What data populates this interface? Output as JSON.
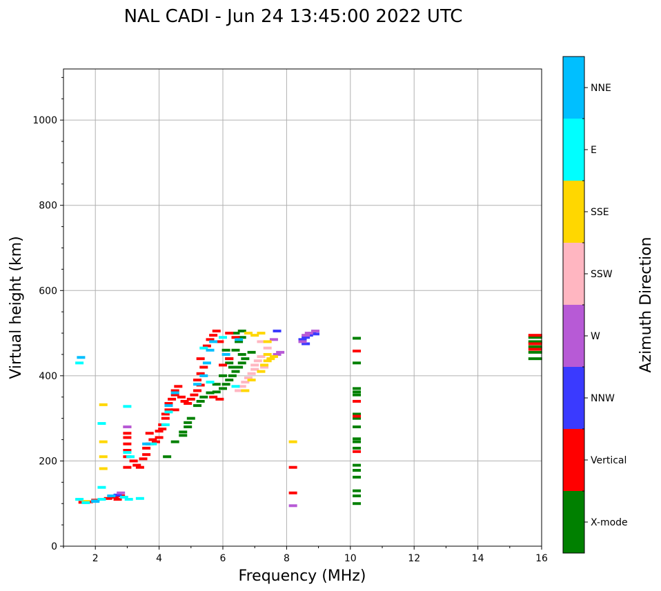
{
  "chart_data": {
    "type": "scatter",
    "title": "NAL CADI - Jun 24 13:45:00 2022 UTC",
    "xlabel": "Frequency (MHz)",
    "ylabel": "Virtual height (km)",
    "xlim": [
      1,
      16
    ],
    "ylim": [
      0,
      1120
    ],
    "xticks": [
      2,
      4,
      6,
      8,
      10,
      12,
      14,
      16
    ],
    "yticks": [
      0,
      200,
      400,
      600,
      800,
      1000
    ],
    "grid": true,
    "colorbar": {
      "label": "Azimuth Direction",
      "categories": [
        {
          "name": "X-mode",
          "color": "#008000"
        },
        {
          "name": "Vertical",
          "color": "#ff0000"
        },
        {
          "name": "NNW",
          "color": "#3a3aff"
        },
        {
          "name": "W",
          "color": "#b75ad6"
        },
        {
          "name": "SSW",
          "color": "#ffb6c1"
        },
        {
          "name": "SSE",
          "color": "#ffd700"
        },
        {
          "name": "E",
          "color": "#00ffff"
        },
        {
          "name": "NNE",
          "color": "#00bfff"
        }
      ]
    },
    "series": [
      {
        "name": "X-mode",
        "points": [
          [
            4.25,
            210
          ],
          [
            4.5,
            245
          ],
          [
            4.75,
            260
          ],
          [
            4.75,
            268
          ],
          [
            4.9,
            280
          ],
          [
            4.9,
            290
          ],
          [
            5.0,
            300
          ],
          [
            5.2,
            330
          ],
          [
            5.3,
            340
          ],
          [
            5.4,
            350
          ],
          [
            5.6,
            360
          ],
          [
            5.8,
            362
          ],
          [
            6.0,
            370
          ],
          [
            6.1,
            380
          ],
          [
            6.2,
            390
          ],
          [
            6.3,
            400
          ],
          [
            6.4,
            410
          ],
          [
            6.5,
            420
          ],
          [
            6.6,
            430
          ],
          [
            6.7,
            440
          ],
          [
            6.6,
            450
          ],
          [
            6.4,
            460
          ],
          [
            6.3,
            420
          ],
          [
            6.2,
            440
          ],
          [
            6.1,
            460
          ],
          [
            6.5,
            480
          ],
          [
            6.6,
            490
          ],
          [
            6.6,
            505
          ],
          [
            6.4,
            500
          ],
          [
            6.2,
            430
          ],
          [
            6.0,
            400
          ],
          [
            5.8,
            380
          ],
          [
            6.9,
            455
          ],
          [
            10.2,
            100
          ],
          [
            10.2,
            118
          ],
          [
            10.2,
            130
          ],
          [
            10.2,
            162
          ],
          [
            10.2,
            178
          ],
          [
            10.2,
            190
          ],
          [
            10.2,
            230
          ],
          [
            10.2,
            245
          ],
          [
            10.2,
            252
          ],
          [
            10.2,
            280
          ],
          [
            10.2,
            300
          ],
          [
            10.2,
            310
          ],
          [
            10.2,
            355
          ],
          [
            10.2,
            362
          ],
          [
            10.2,
            370
          ],
          [
            10.2,
            430
          ],
          [
            10.2,
            488
          ],
          [
            15.8,
            440
          ],
          [
            15.8,
            455
          ],
          [
            15.8,
            468
          ],
          [
            15.8,
            480
          ],
          [
            15.8,
            490
          ]
        ]
      },
      {
        "name": "Vertical",
        "points": [
          [
            1.6,
            103
          ],
          [
            1.8,
            104
          ],
          [
            2.0,
            108
          ],
          [
            2.4,
            112
          ],
          [
            2.6,
            115
          ],
          [
            2.8,
            118
          ],
          [
            2.7,
            110
          ],
          [
            3.0,
            185
          ],
          [
            3.0,
            210
          ],
          [
            3.0,
            225
          ],
          [
            3.0,
            240
          ],
          [
            3.0,
            255
          ],
          [
            3.0,
            265
          ],
          [
            3.0,
            280
          ],
          [
            3.2,
            200
          ],
          [
            3.3,
            190
          ],
          [
            3.4,
            185
          ],
          [
            3.5,
            205
          ],
          [
            3.6,
            215
          ],
          [
            3.6,
            230
          ],
          [
            3.7,
            240
          ],
          [
            3.7,
            265
          ],
          [
            3.8,
            250
          ],
          [
            3.9,
            245
          ],
          [
            4.0,
            255
          ],
          [
            4.0,
            270
          ],
          [
            4.1,
            275
          ],
          [
            4.1,
            285
          ],
          [
            4.2,
            300
          ],
          [
            4.2,
            310
          ],
          [
            4.3,
            320
          ],
          [
            4.3,
            335
          ],
          [
            4.4,
            345
          ],
          [
            4.5,
            355
          ],
          [
            4.5,
            365
          ],
          [
            4.6,
            375
          ],
          [
            4.7,
            350
          ],
          [
            4.8,
            340
          ],
          [
            4.9,
            335
          ],
          [
            5.0,
            345
          ],
          [
            5.1,
            355
          ],
          [
            5.2,
            365
          ],
          [
            5.3,
            378
          ],
          [
            5.2,
            390
          ],
          [
            5.3,
            405
          ],
          [
            5.4,
            420
          ],
          [
            5.3,
            440
          ],
          [
            5.5,
            470
          ],
          [
            5.6,
            485
          ],
          [
            5.7,
            495
          ],
          [
            5.8,
            505
          ],
          [
            5.9,
            480
          ],
          [
            6.0,
            425
          ],
          [
            6.2,
            440
          ],
          [
            6.2,
            500
          ],
          [
            6.4,
            490
          ],
          [
            4.5,
            320
          ],
          [
            5.7,
            350
          ],
          [
            5.9,
            345
          ],
          [
            8.2,
            125
          ],
          [
            8.2,
            185
          ],
          [
            10.2,
            222
          ],
          [
            10.2,
            305
          ],
          [
            10.2,
            340
          ],
          [
            10.2,
            458
          ],
          [
            15.8,
            462
          ],
          [
            15.8,
            475
          ],
          [
            15.8,
            495
          ]
        ]
      },
      {
        "name": "NNW",
        "points": [
          [
            8.5,
            485
          ],
          [
            8.6,
            490
          ],
          [
            8.7,
            495
          ],
          [
            8.8,
            500
          ],
          [
            8.9,
            498
          ],
          [
            8.6,
            475
          ],
          [
            7.7,
            505
          ],
          [
            2.7,
            120
          ]
        ]
      },
      {
        "name": "W",
        "points": [
          [
            8.2,
            95
          ],
          [
            8.5,
            480
          ],
          [
            8.6,
            495
          ],
          [
            8.7,
            500
          ],
          [
            8.9,
            505
          ],
          [
            7.7,
            450
          ],
          [
            7.8,
            455
          ],
          [
            7.6,
            485
          ],
          [
            2.8,
            125
          ],
          [
            3.0,
            280
          ]
        ]
      },
      {
        "name": "SSW",
        "points": [
          [
            6.5,
            365
          ],
          [
            6.6,
            375
          ],
          [
            6.7,
            385
          ],
          [
            6.8,
            395
          ],
          [
            6.9,
            405
          ],
          [
            7.0,
            415
          ],
          [
            7.0,
            425
          ],
          [
            7.1,
            435
          ],
          [
            7.2,
            445
          ],
          [
            7.3,
            420
          ],
          [
            7.2,
            480
          ],
          [
            7.4,
            465
          ]
        ]
      },
      {
        "name": "SSE",
        "points": [
          [
            2.25,
            182
          ],
          [
            2.25,
            210
          ],
          [
            2.25,
            245
          ],
          [
            2.25,
            332
          ],
          [
            1.7,
            105
          ],
          [
            6.7,
            365
          ],
          [
            6.9,
            390
          ],
          [
            7.2,
            410
          ],
          [
            7.3,
            425
          ],
          [
            7.4,
            435
          ],
          [
            7.5,
            440
          ],
          [
            7.6,
            445
          ],
          [
            7.2,
            500
          ],
          [
            7.4,
            480
          ],
          [
            8.2,
            245
          ],
          [
            7.0,
            495
          ],
          [
            6.8,
            500
          ],
          [
            7.4,
            450
          ]
        ]
      },
      {
        "name": "E",
        "points": [
          [
            1.5,
            110
          ],
          [
            1.7,
            102
          ],
          [
            2.0,
            106
          ],
          [
            2.2,
            110
          ],
          [
            2.2,
            138
          ],
          [
            2.2,
            288
          ],
          [
            3.0,
            328
          ],
          [
            3.0,
            220
          ],
          [
            3.1,
            210
          ],
          [
            3.4,
            112
          ],
          [
            3.05,
            110
          ],
          [
            2.9,
            115
          ],
          [
            1.5,
            430
          ],
          [
            3.8,
            240
          ],
          [
            4.2,
            285
          ],
          [
            4.3,
            315
          ],
          [
            5.6,
            385
          ],
          [
            6.4,
            375
          ],
          [
            5.4,
            465
          ],
          [
            6.0,
            490
          ]
        ]
      },
      {
        "name": "NNE",
        "points": [
          [
            1.55,
            443
          ],
          [
            2.0,
            105
          ],
          [
            2.5,
            118
          ],
          [
            4.5,
            360
          ],
          [
            5.2,
            380
          ],
          [
            5.4,
            400
          ],
          [
            5.5,
            430
          ],
          [
            5.6,
            460
          ],
          [
            5.7,
            480
          ],
          [
            6.1,
            450
          ],
          [
            6.5,
            485
          ],
          [
            4.3,
            330
          ],
          [
            3.6,
            240
          ]
        ]
      }
    ]
  }
}
